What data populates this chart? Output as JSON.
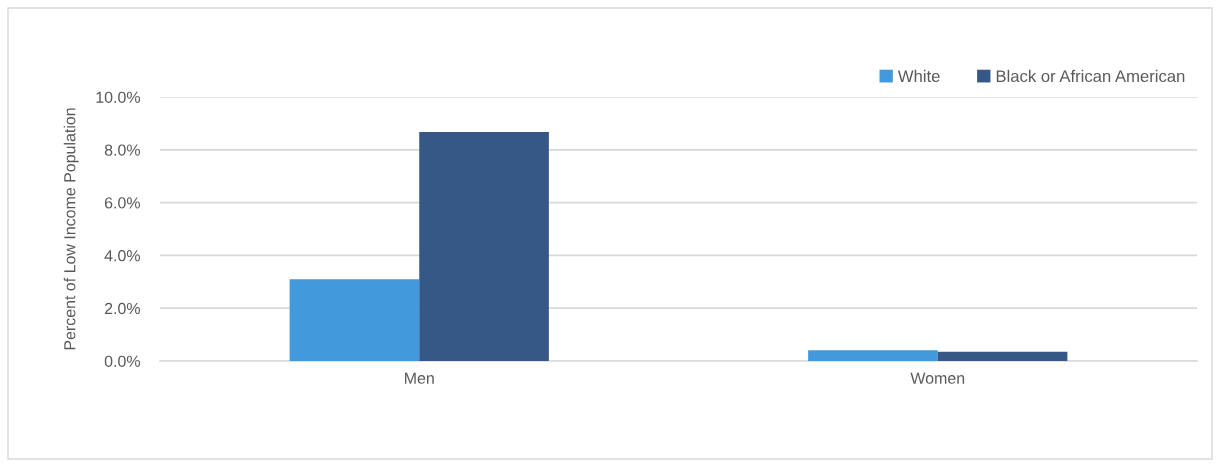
{
  "chart_data": {
    "type": "bar",
    "ylabel": "Percent of Low Income Population",
    "categories": [
      "Men",
      "Women"
    ],
    "series": [
      {
        "name": "White",
        "color": "#4299dc",
        "values": [
          3.1,
          0.41
        ]
      },
      {
        "name": "Black or African American",
        "color": "#365886",
        "values": [
          8.67,
          0.35
        ]
      }
    ],
    "ylim": [
      0,
      10
    ],
    "yticks": [
      {
        "value": 0,
        "label": "0.0%"
      },
      {
        "value": 2,
        "label": "2.0%"
      },
      {
        "value": 4,
        "label": "4.0%"
      },
      {
        "value": 6,
        "label": "6.0%"
      },
      {
        "value": 8,
        "label": "8.0%"
      },
      {
        "value": 10,
        "label": "10.0%"
      }
    ],
    "grid": "y",
    "legend": "top right"
  }
}
